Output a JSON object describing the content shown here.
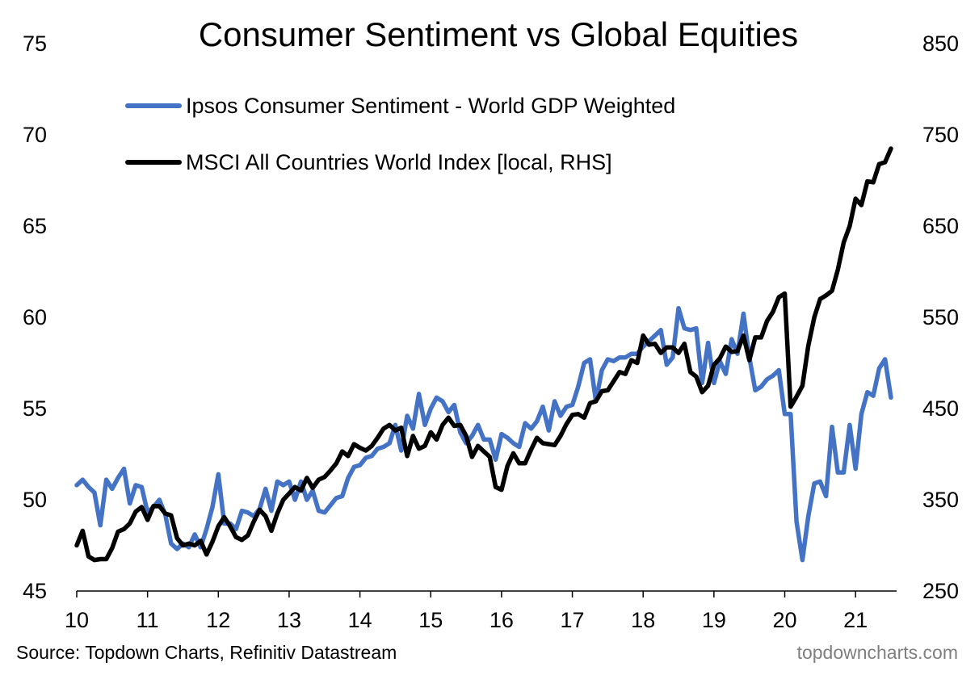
{
  "chart_data": {
    "type": "line",
    "title": "Consumer Sentiment vs Global Equities",
    "x_ticks": [
      "10",
      "11",
      "12",
      "13",
      "14",
      "15",
      "16",
      "17",
      "18",
      "19",
      "20",
      "21"
    ],
    "xlim": [
      2010,
      2021.58
    ],
    "y_left": {
      "lim": [
        45,
        75
      ],
      "ticks": [
        "45",
        "50",
        "55",
        "60",
        "65",
        "70",
        "75"
      ]
    },
    "y_right": {
      "lim": [
        250,
        850
      ],
      "ticks": [
        "250",
        "350",
        "450",
        "550",
        "650",
        "750",
        "850"
      ]
    },
    "grid": false,
    "legend_placement": "top-left",
    "series": [
      {
        "name": "Ipsos Consumer Sentiment - World GDP Weighted",
        "axis": "left",
        "color": "#4472C4",
        "x": [
          2010.0,
          2010.083,
          2010.167,
          2010.25,
          2010.333,
          2010.417,
          2010.5,
          2010.583,
          2010.667,
          2010.75,
          2010.833,
          2010.917,
          2011.0,
          2011.083,
          2011.167,
          2011.25,
          2011.333,
          2011.417,
          2011.5,
          2011.583,
          2011.667,
          2011.75,
          2011.833,
          2011.917,
          2012.0,
          2012.083,
          2012.167,
          2012.25,
          2012.333,
          2012.417,
          2012.5,
          2012.583,
          2012.667,
          2012.75,
          2012.833,
          2012.917,
          2013.0,
          2013.083,
          2013.167,
          2013.25,
          2013.333,
          2013.417,
          2013.5,
          2013.583,
          2013.667,
          2013.75,
          2013.833,
          2013.917,
          2014.0,
          2014.083,
          2014.167,
          2014.25,
          2014.333,
          2014.417,
          2014.5,
          2014.583,
          2014.667,
          2014.75,
          2014.833,
          2014.917,
          2015.0,
          2015.083,
          2015.167,
          2015.25,
          2015.333,
          2015.417,
          2015.5,
          2015.583,
          2015.667,
          2015.75,
          2015.833,
          2015.917,
          2016.0,
          2016.083,
          2016.167,
          2016.25,
          2016.333,
          2016.417,
          2016.5,
          2016.583,
          2016.667,
          2016.75,
          2016.833,
          2016.917,
          2017.0,
          2017.083,
          2017.167,
          2017.25,
          2017.333,
          2017.417,
          2017.5,
          2017.583,
          2017.667,
          2017.75,
          2017.833,
          2017.917,
          2018.0,
          2018.083,
          2018.167,
          2018.25,
          2018.333,
          2018.417,
          2018.5,
          2018.583,
          2018.667,
          2018.75,
          2018.833,
          2018.917,
          2019.0,
          2019.083,
          2019.167,
          2019.25,
          2019.333,
          2019.417,
          2019.5,
          2019.583,
          2019.667,
          2019.75,
          2019.833,
          2019.917,
          2020.0,
          2020.083,
          2020.167,
          2020.25,
          2020.333,
          2020.417,
          2020.5,
          2020.583,
          2020.667,
          2020.75,
          2020.833,
          2020.917,
          2021.0,
          2021.083,
          2021.167,
          2021.25,
          2021.333,
          2021.417,
          2021.5
        ],
        "values": [
          50.8,
          51.1,
          50.7,
          50.4,
          48.6,
          51.1,
          50.6,
          51.2,
          51.7,
          49.8,
          50.8,
          50.7,
          49.3,
          49.6,
          50.0,
          49.2,
          47.6,
          47.3,
          47.6,
          47.4,
          48.1,
          47.4,
          48.4,
          49.6,
          51.4,
          48.7,
          48.7,
          48.4,
          49.4,
          49.3,
          49.1,
          49.5,
          50.6,
          49.4,
          51.0,
          50.8,
          51.0,
          50.0,
          51.0,
          50.0,
          50.5,
          49.4,
          49.3,
          49.7,
          50.1,
          50.2,
          51.2,
          51.8,
          51.9,
          52.3,
          52.4,
          52.8,
          52.9,
          53.1,
          54.1,
          52.7,
          54.6,
          53.9,
          55.8,
          54.1,
          55.0,
          55.6,
          55.4,
          54.8,
          55.2,
          53.7,
          53.1,
          53.5,
          54.1,
          53.3,
          53.3,
          52.2,
          53.6,
          53.4,
          53.1,
          52.9,
          54.2,
          53.9,
          54.3,
          55.1,
          53.8,
          55.4,
          54.6,
          55.1,
          55.2,
          56.2,
          57.5,
          57.7,
          55.4,
          57.1,
          57.7,
          57.6,
          57.8,
          57.8,
          58.0,
          58.0,
          58.4,
          58.7,
          59.0,
          59.3,
          57.4,
          57.8,
          60.5,
          59.4,
          59.3,
          59.4,
          56.4,
          58.6,
          56.4,
          57.6,
          56.9,
          58.8,
          58.0,
          60.2,
          57.8,
          56.0,
          56.2,
          56.6,
          56.8,
          57.1,
          54.7,
          54.7,
          48.8,
          46.7,
          49.1,
          50.9,
          51.0,
          50.2,
          54.0,
          51.5,
          51.5,
          54.1,
          51.7,
          54.7,
          55.9,
          55.7,
          57.2,
          57.7,
          55.6
        ]
      },
      {
        "name": "MSCI All Countries World Index [local, RHS]",
        "axis": "right",
        "color": "#000000",
        "x": [
          2010.0,
          2010.083,
          2010.167,
          2010.25,
          2010.333,
          2010.417,
          2010.5,
          2010.583,
          2010.667,
          2010.75,
          2010.833,
          2010.917,
          2011.0,
          2011.083,
          2011.167,
          2011.25,
          2011.333,
          2011.417,
          2011.5,
          2011.583,
          2011.667,
          2011.75,
          2011.833,
          2011.917,
          2012.0,
          2012.083,
          2012.167,
          2012.25,
          2012.333,
          2012.417,
          2012.5,
          2012.583,
          2012.667,
          2012.75,
          2012.833,
          2012.917,
          2013.0,
          2013.083,
          2013.167,
          2013.25,
          2013.333,
          2013.417,
          2013.5,
          2013.583,
          2013.667,
          2013.75,
          2013.833,
          2013.917,
          2014.0,
          2014.083,
          2014.167,
          2014.25,
          2014.333,
          2014.417,
          2014.5,
          2014.583,
          2014.667,
          2014.75,
          2014.833,
          2014.917,
          2015.0,
          2015.083,
          2015.167,
          2015.25,
          2015.333,
          2015.417,
          2015.5,
          2015.583,
          2015.667,
          2015.75,
          2015.833,
          2015.917,
          2016.0,
          2016.083,
          2016.167,
          2016.25,
          2016.333,
          2016.417,
          2016.5,
          2016.583,
          2016.667,
          2016.75,
          2016.833,
          2016.917,
          2017.0,
          2017.083,
          2017.167,
          2017.25,
          2017.333,
          2017.417,
          2017.5,
          2017.583,
          2017.667,
          2017.75,
          2017.833,
          2017.917,
          2018.0,
          2018.083,
          2018.167,
          2018.25,
          2018.333,
          2018.417,
          2018.5,
          2018.583,
          2018.667,
          2018.75,
          2018.833,
          2018.917,
          2019.0,
          2019.083,
          2019.167,
          2019.25,
          2019.333,
          2019.417,
          2019.5,
          2019.583,
          2019.667,
          2019.75,
          2019.833,
          2019.917,
          2020.0,
          2020.083,
          2020.167,
          2020.25,
          2020.333,
          2020.417,
          2020.5,
          2020.583,
          2020.667,
          2020.75,
          2020.833,
          2020.917,
          2021.0,
          2021.083,
          2021.167,
          2021.25,
          2021.333,
          2021.417,
          2021.5
        ],
        "values": [
          300,
          316,
          288,
          284,
          285,
          285,
          297,
          315,
          318,
          324,
          337,
          342,
          328,
          343,
          343,
          335,
          333,
          308,
          300,
          302,
          300,
          305,
          290,
          304,
          321,
          331,
          321,
          309,
          306,
          311,
          326,
          339,
          332,
          316,
          335,
          350,
          357,
          364,
          360,
          374,
          363,
          372,
          375,
          382,
          390,
          403,
          398,
          411,
          407,
          404,
          409,
          418,
          428,
          432,
          426,
          429,
          398,
          420,
          406,
          409,
          424,
          416,
          432,
          440,
          431,
          432,
          420,
          397,
          409,
          403,
          397,
          364,
          361,
          387,
          401,
          390,
          390,
          405,
          418,
          412,
          411,
          410,
          420,
          433,
          443,
          444,
          440,
          456,
          458,
          469,
          470,
          480,
          490,
          488,
          503,
          500,
          530,
          520,
          521,
          511,
          517,
          517,
          511,
          521,
          490,
          485,
          468,
          475,
          498,
          505,
          518,
          512,
          513,
          530,
          503,
          528,
          528,
          546,
          556,
          572,
          576,
          452,
          463,
          475,
          519,
          550,
          570,
          574,
          579,
          602,
          632,
          650,
          680,
          673,
          699,
          698,
          718,
          720,
          735
        ]
      }
    ],
    "source": "Source: Topdown Charts, Refinitiv Datastream",
    "watermark": "topdowncharts.com"
  }
}
